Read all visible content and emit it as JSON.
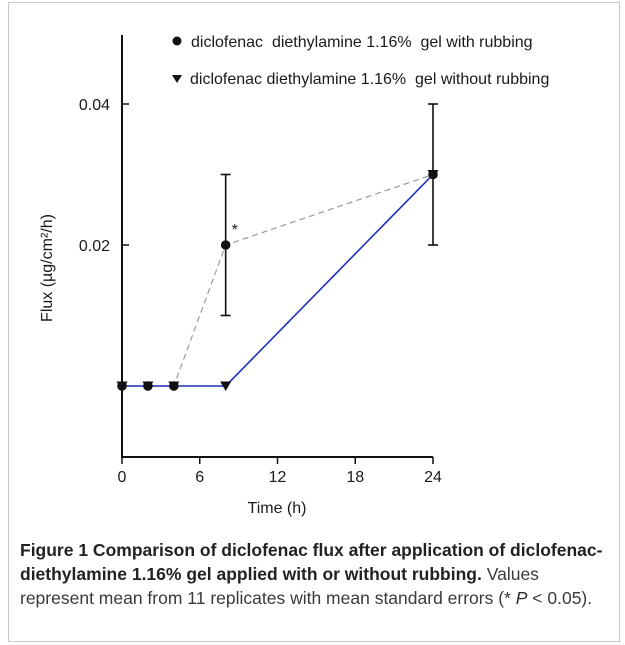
{
  "chart_data": {
    "type": "line",
    "xlabel": "Time (h)",
    "ylabel": "Flux (µg/cm²/h)",
    "x_ticks": [
      0,
      6,
      12,
      18,
      24
    ],
    "y_ticks": [
      0.02,
      0.04
    ],
    "y_tick_labels": [
      "0.02",
      "0.04"
    ],
    "xlim": [
      0,
      24
    ],
    "ylim": [
      -0.01,
      0.05
    ],
    "grid": false,
    "legend_position": "top",
    "series": [
      {
        "name": "diclofenac  diethylamine 1.16%  gel with rubbing",
        "marker": "circle",
        "line_style": "dashed",
        "color": "#9a9a9a",
        "x": [
          0,
          2,
          4,
          8,
          24
        ],
        "y": [
          0,
          0,
          0,
          0.02,
          0.03
        ],
        "error": [
          null,
          null,
          null,
          0.01,
          null
        ]
      },
      {
        "name": "diclofenac diethylamine 1.16%  gel without rubbing",
        "marker": "triangle-down",
        "line_style": "solid",
        "color": "#1f2fbf",
        "x": [
          0,
          2,
          4,
          8,
          24
        ],
        "y": [
          0,
          0,
          0,
          0,
          0.03
        ],
        "error": [
          null,
          null,
          null,
          null,
          0.01
        ]
      }
    ],
    "annotations": [
      {
        "text": "*",
        "x": 8,
        "y": 0.02
      }
    ]
  },
  "caption": {
    "title": "Figure 1 Comparison of diclofenac flux after application of diclofenac-diethylamine 1.16% gel applied with or without rubbing.",
    "text_before_p": " Values represent mean from 11 replicates with mean standard errors (* ",
    "p_symbol": "P",
    "text_after_p": " < 0.05)."
  }
}
